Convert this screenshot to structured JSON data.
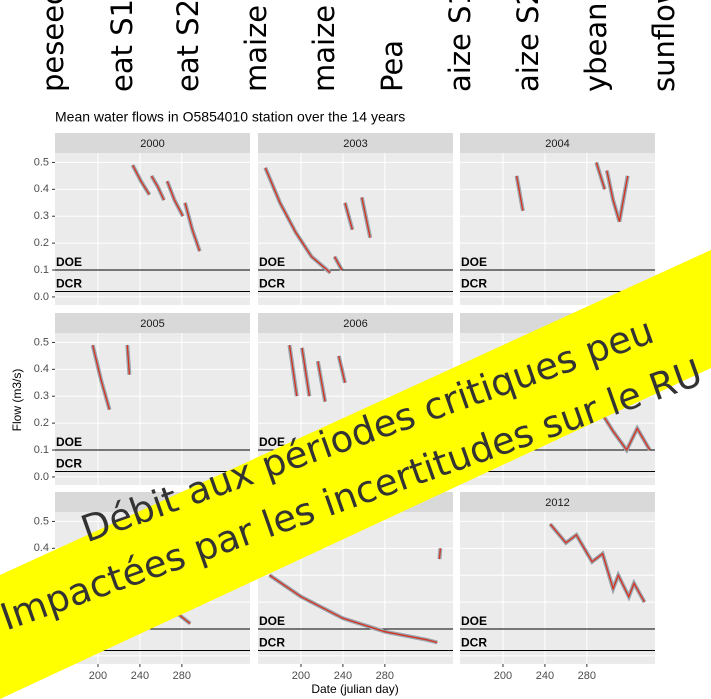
{
  "crop_labels": [
    "peseed",
    "eat S1",
    "eat S2",
    "maize",
    "maize",
    "Pea",
    "aize S1",
    "aize S2",
    "ybean",
    "sunflower"
  ],
  "title": "Mean water flows in O5854010 station over the 14 years",
  "x_label": "Date (julian day)",
  "y_label": "Flow (m3/s)",
  "xlim": [
    159,
    345
  ],
  "xticks": [
    200,
    240,
    280
  ],
  "ylim": [
    -0.03,
    0.535
  ],
  "yticks": [
    {
      "value": 0,
      "label": "0.0"
    },
    0.1,
    0.2,
    0.3,
    0.4,
    0.5
  ],
  "hlines": [
    {
      "label": "DOE",
      "value": 0.1
    },
    {
      "label": "DCR",
      "value": 0.02
    }
  ],
  "color": "#d7301f",
  "band_color": "#9aa5ad",
  "grid": true,
  "chart_data": [
    {
      "type": "line",
      "title": "2000",
      "x": [
        233,
        241,
        249,
        null,
        251,
        257,
        263,
        null,
        266,
        273,
        281,
        null,
        283,
        290,
        297
      ],
      "values": [
        0.49,
        0.43,
        0.38,
        null,
        0.45,
        0.41,
        0.36,
        null,
        0.43,
        0.36,
        0.3,
        null,
        0.35,
        0.25,
        0.17
      ]
    },
    {
      "type": "line",
      "title": "2003",
      "x": [
        166,
        180,
        195,
        210,
        228,
        null,
        232,
        239,
        null,
        242,
        249,
        null,
        258,
        266
      ],
      "values": [
        0.48,
        0.35,
        0.24,
        0.15,
        0.09,
        null,
        0.15,
        0.1,
        null,
        0.35,
        0.25,
        null,
        0.37,
        0.22
      ]
    },
    {
      "type": "line",
      "title": "2004",
      "x": [
        213,
        219,
        null,
        289,
        297,
        null,
        299,
        305,
        311,
        319
      ],
      "values": [
        0.45,
        0.32,
        null,
        0.5,
        0.4,
        null,
        0.47,
        0.36,
        0.28,
        0.45
      ]
    },
    {
      "type": "line",
      "title": "2005",
      "x": [
        195,
        203,
        211,
        null,
        228,
        230
      ],
      "values": [
        0.49,
        0.36,
        0.25,
        null,
        0.49,
        0.38
      ]
    },
    {
      "type": "line",
      "title": "2006",
      "x": [
        189,
        196,
        null,
        201,
        208,
        null,
        216,
        223,
        null,
        236,
        242
      ],
      "values": [
        0.49,
        0.3,
        null,
        0.48,
        0.3,
        null,
        0.43,
        0.28,
        null,
        0.45,
        0.35
      ]
    },
    {
      "type": "line",
      "x": [
        292,
        305,
        318,
        328,
        340
      ],
      "values": [
        0.25,
        0.17,
        0.1,
        0.18,
        0.1
      ]
    },
    {
      "type": "line",
      "x": [
        249,
        262,
        275,
        288
      ],
      "values": [
        0.3,
        0.22,
        0.16,
        0.12
      ]
    },
    {
      "type": "line",
      "x": [
        170,
        200,
        240,
        280,
        320,
        330,
        null,
        332,
        333
      ],
      "values": [
        0.3,
        0.22,
        0.14,
        0.09,
        0.06,
        0.05,
        null,
        0.36,
        0.4
      ]
    },
    {
      "type": "line",
      "title": "2012",
      "x": [
        245,
        260,
        270,
        285,
        295,
        305,
        310,
        320,
        325,
        335
      ],
      "values": [
        0.49,
        0.42,
        0.45,
        0.35,
        0.38,
        0.25,
        0.3,
        0.22,
        0.27,
        0.2
      ]
    }
  ],
  "banner": [
    "Débit aux périodes critiques peu",
    "Impactées par les incertitudes sur le RU"
  ]
}
